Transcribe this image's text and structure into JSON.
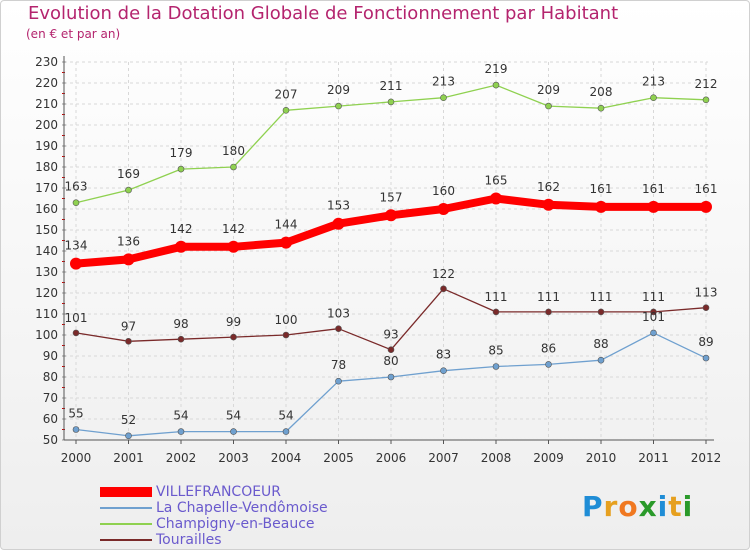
{
  "chart_data": {
    "type": "line",
    "title": "Evolution de la Dotation Globale de Fonctionnement par Habitant",
    "subtitle": "(en € et par an)",
    "x": [
      "2000",
      "2001",
      "2002",
      "2003",
      "2004",
      "2005",
      "2006",
      "2007",
      "2008",
      "2009",
      "2010",
      "2011",
      "2012"
    ],
    "ylim": [
      50,
      230
    ],
    "ytick_step": 10,
    "grid": true,
    "legend_position": "bottom-left",
    "series": [
      {
        "name": "VILLEFRANCOEUR",
        "color": "#ff0000",
        "emphasis": true,
        "values": [
          134,
          136,
          142,
          142,
          144,
          153,
          157,
          160,
          165,
          162,
          161,
          161,
          161
        ]
      },
      {
        "name": "La Chapelle-Vendômoise",
        "color": "#6fa0cf",
        "values": [
          55,
          52,
          54,
          54,
          54,
          78,
          80,
          83,
          85,
          86,
          88,
          101,
          89
        ]
      },
      {
        "name": "Champigny-en-Beauce",
        "color": "#8fd150",
        "values": [
          163,
          169,
          179,
          180,
          207,
          209,
          211,
          213,
          219,
          209,
          208,
          213,
          212
        ]
      },
      {
        "name": "Tourailles",
        "color": "#7a2a2a",
        "values": [
          101,
          97,
          98,
          99,
          100,
          103,
          93,
          122,
          111,
          111,
          111,
          111,
          113
        ]
      }
    ]
  },
  "logo": {
    "letters": [
      "P",
      "r",
      "o",
      "x",
      "i",
      "t",
      "i"
    ],
    "colors": [
      "#1f8dd6",
      "#e6a01f",
      "#f07820",
      "#2a9a2a",
      "#1f8dd6",
      "#e6a01f",
      "#2a9a2a"
    ]
  }
}
